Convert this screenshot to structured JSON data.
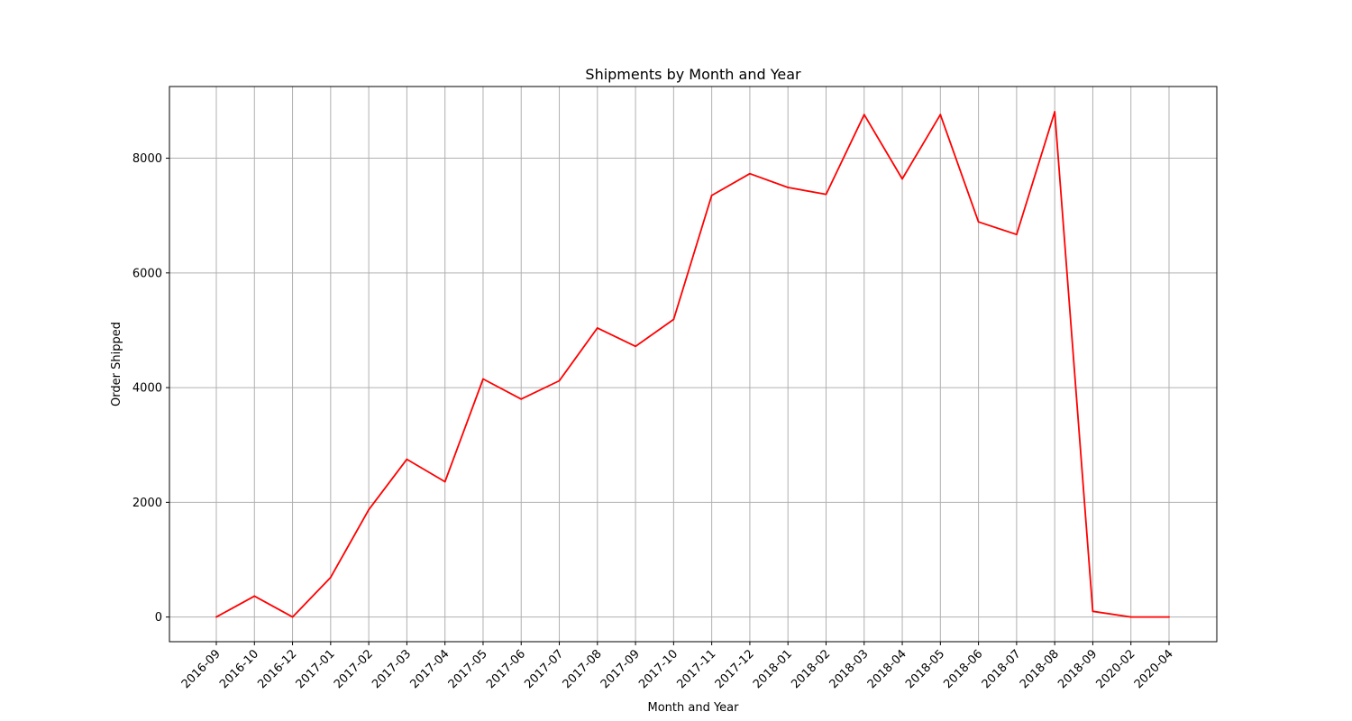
{
  "chart_data": {
    "type": "line",
    "title": "Shipments by Month and Year",
    "xlabel": "Month and Year",
    "ylabel": "Order Shipped",
    "categories": [
      "2016-09",
      "2016-10",
      "2016-12",
      "2017-01",
      "2017-02",
      "2017-03",
      "2017-04",
      "2017-05",
      "2017-06",
      "2017-07",
      "2017-08",
      "2017-09",
      "2017-10",
      "2017-11",
      "2017-12",
      "2018-01",
      "2018-02",
      "2018-03",
      "2018-04",
      "2018-05",
      "2018-06",
      "2018-07",
      "2018-08",
      "2018-09",
      "2020-02",
      "2020-04"
    ],
    "series": [
      {
        "values": [
          1,
          365,
          1,
          690,
          1870,
          2750,
          2360,
          4150,
          3800,
          4120,
          5040,
          4720,
          5190,
          7350,
          7730,
          7490,
          7370,
          8760,
          7640,
          8760,
          6890,
          6670,
          8810,
          100,
          1,
          1
        ],
        "color": "#ff0000"
      }
    ],
    "ylim": [
      -430,
      9250
    ],
    "yticks": [
      0,
      2000,
      4000,
      6000,
      8000
    ],
    "grid": true,
    "legend": "none"
  }
}
